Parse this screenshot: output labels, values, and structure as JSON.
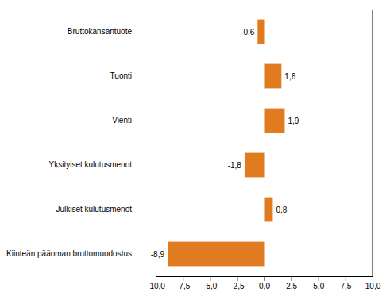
{
  "chart_data": {
    "type": "bar",
    "orientation": "horizontal",
    "categories": [
      "Kiinteän pääoman bruttomuodostus",
      "Julkiset kulutusmenot",
      "Yksityiset kulutusmenot",
      "Vienti",
      "Tuonti",
      "Bruttokansantuote"
    ],
    "values": [
      -8.9,
      0.8,
      -1.8,
      1.9,
      1.6,
      -0.6
    ],
    "value_labels": [
      "-8,9",
      "0,8",
      "-1,8",
      "1,9",
      "1,6",
      "-0,6"
    ],
    "data_labels": true,
    "color": "#E07B20",
    "xlim": [
      -10.0,
      10.0
    ],
    "xticks": [
      {
        "value": -10.0,
        "label": "-10,0"
      },
      {
        "value": -7.5,
        "label": "-7,5"
      },
      {
        "value": -5.0,
        "label": "-5,0"
      },
      {
        "value": -2.5,
        "label": "-2,5"
      },
      {
        "value": 0.0,
        "label": "0,0"
      },
      {
        "value": 2.5,
        "label": "2,5"
      },
      {
        "value": 5.0,
        "label": "5,0"
      },
      {
        "value": 7.5,
        "label": "7,5"
      },
      {
        "value": 10.0,
        "label": "10,0"
      }
    ],
    "grid": false
  }
}
